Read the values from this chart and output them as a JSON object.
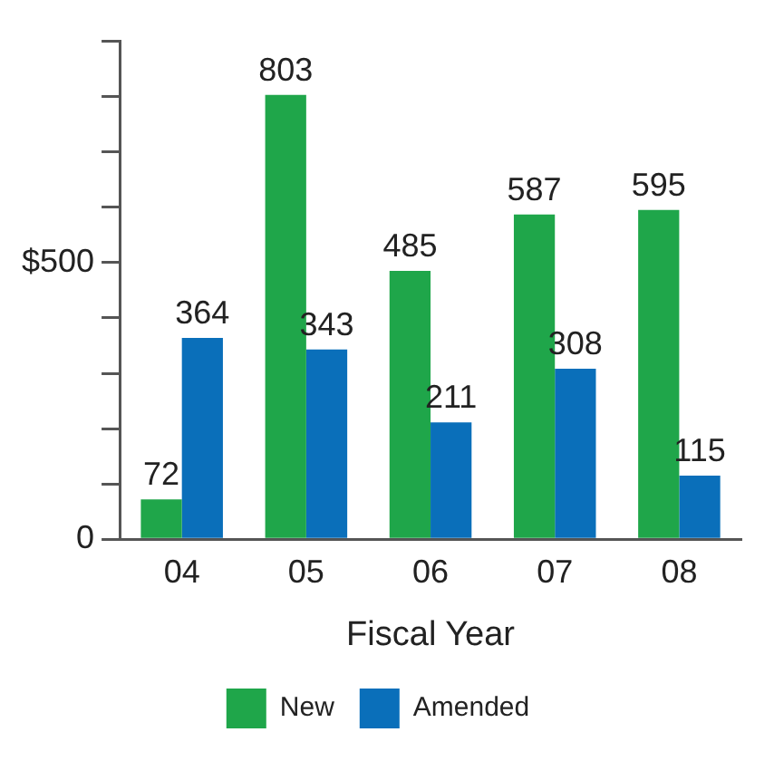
{
  "chart_data": {
    "type": "bar",
    "xlabel": "Fiscal Year",
    "categories": [
      "04",
      "05",
      "06",
      "07",
      "08"
    ],
    "series": [
      {
        "name": "New",
        "color": "#1fa64a",
        "values": [
          72,
          803,
          485,
          587,
          595
        ]
      },
      {
        "name": "Amended",
        "color": "#0a6fba",
        "values": [
          364,
          343,
          211,
          308,
          115
        ]
      }
    ],
    "ylim": [
      0,
      900
    ],
    "yticks": [
      0,
      {
        "value": 100,
        "label": null
      },
      {
        "value": 200,
        "label": null
      },
      {
        "value": 300,
        "label": null
      },
      {
        "value": 400,
        "label": null
      },
      {
        "value": 500,
        "label": "$500"
      },
      {
        "value": 600,
        "label": null
      },
      {
        "value": 700,
        "label": null
      },
      {
        "value": 800,
        "label": null
      },
      {
        "value": 900,
        "label": null
      }
    ],
    "grid": false,
    "legend": "bottom",
    "data_labels": true
  }
}
